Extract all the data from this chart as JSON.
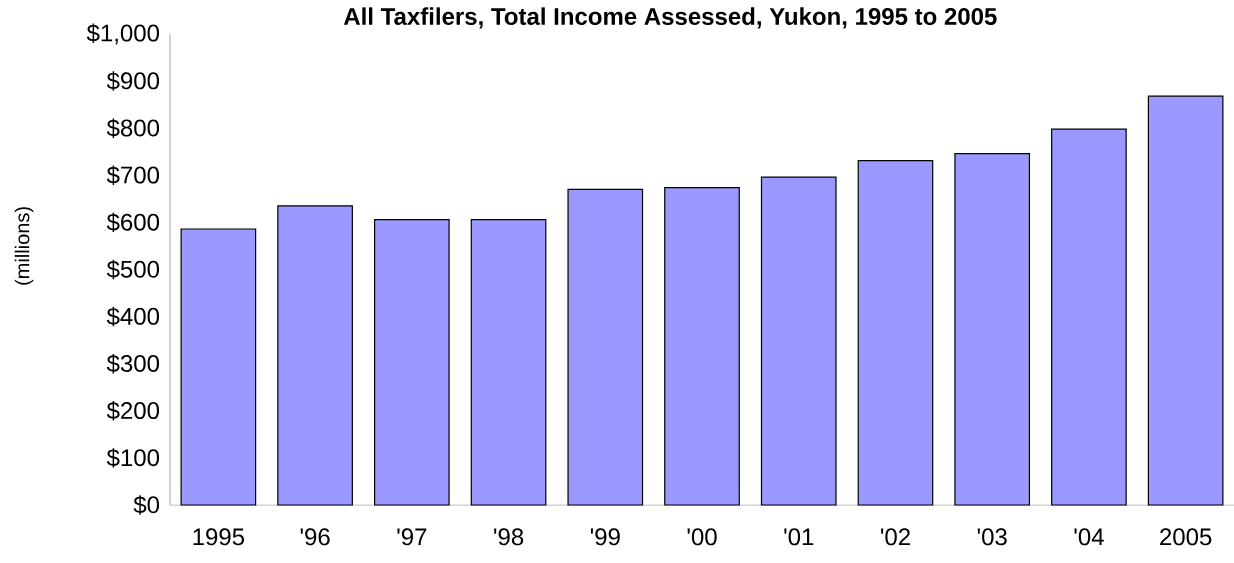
{
  "chart_data": {
    "type": "bar",
    "title": "All Taxfilers, Total Income Assessed, Yukon, 1995 to 2005",
    "ylabel": "(millions)",
    "categories": [
      "1995",
      "'96",
      "'97",
      "'98",
      "'99",
      "'00",
      "'01",
      "'02",
      "'03",
      "'04",
      "2005"
    ],
    "values": [
      586,
      635,
      606,
      606,
      670,
      674,
      696,
      731,
      746,
      798,
      868
    ],
    "color": "#9999ff",
    "ylim": [
      0,
      1000
    ],
    "yticks": [
      {
        "value": 0,
        "label": "$0"
      },
      {
        "value": 100,
        "label": "$100"
      },
      {
        "value": 200,
        "label": "$200"
      },
      {
        "value": 300,
        "label": "$300"
      },
      {
        "value": 400,
        "label": "$400"
      },
      {
        "value": 500,
        "label": "$500"
      },
      {
        "value": 600,
        "label": "$600"
      },
      {
        "value": 700,
        "label": "$700"
      },
      {
        "value": 800,
        "label": "$800"
      },
      {
        "value": 900,
        "label": "$900"
      },
      {
        "value": 1000,
        "label": "$1,000"
      }
    ],
    "grid": false
  }
}
